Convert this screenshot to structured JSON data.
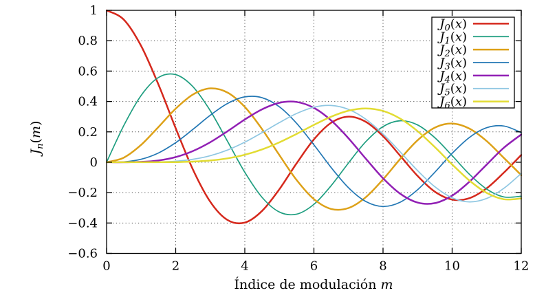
{
  "figure": {
    "background": "#ffffff",
    "title": ""
  },
  "style": {
    "axis_color": "#000000",
    "text_color": "#000000",
    "grid_color": "#4d4d4d",
    "legend_bg": "#ffffff",
    "legend_border": "#000000"
  },
  "chart_data": {
    "type": "line",
    "title": "",
    "xlabel": "Índice de modulación m",
    "ylabel": "J_n(m)",
    "xlabel_parts": {
      "text": "Índice de modulación ",
      "var": "m"
    },
    "ylabel_parts": {
      "base": "J",
      "sub": "n",
      "open": "(",
      "var": "m",
      "close": ")"
    },
    "xlim": [
      0,
      12
    ],
    "ylim": [
      -0.6,
      1
    ],
    "xticks": [
      0,
      2,
      4,
      6,
      8,
      10,
      12
    ],
    "xtick_labels": [
      "0",
      "2",
      "4",
      "6",
      "8",
      "10",
      "12"
    ],
    "yticks": [
      1,
      0.8,
      0.6,
      0.4,
      0.2,
      0,
      -0.2,
      -0.4,
      -0.6
    ],
    "ytick_labels": [
      "1",
      "0.8",
      "0.6",
      "0.4",
      "0.2",
      "0",
      "−0.2",
      "−0.4",
      "−0.6"
    ],
    "grid": true,
    "grid_style": "dotted",
    "legend_position": "top-right-inside",
    "x": [
      0,
      0.5,
      1,
      1.5,
      2,
      2.5,
      3,
      3.5,
      4,
      4.5,
      5,
      5.5,
      6,
      6.5,
      7,
      7.5,
      8,
      8.5,
      9,
      9.5,
      10,
      10.5,
      11,
      11.5,
      12
    ],
    "series": [
      {
        "name": "J_0(x)",
        "base": "J",
        "sub": "0",
        "arg_open": "(",
        "arg_var": "x",
        "arg_close": ")",
        "color": "#d5281c",
        "width": 2.5,
        "values": [
          1,
          0.9385,
          0.7652,
          0.5118,
          0.2239,
          -0.0484,
          -0.2601,
          -0.3801,
          -0.3971,
          -0.3205,
          -0.1776,
          -0.0068,
          0.1506,
          0.2601,
          0.3001,
          0.2663,
          0.1717,
          0.0419,
          -0.0903,
          -0.1939,
          -0.2459,
          -0.2366,
          -0.1712,
          -0.0677,
          0.0477
        ]
      },
      {
        "name": "J_1(x)",
        "base": "J",
        "sub": "1",
        "arg_open": "(",
        "arg_var": "x",
        "arg_close": ")",
        "color": "#1f9e80",
        "width": 1.7,
        "values": [
          0,
          0.2423,
          0.4401,
          0.5579,
          0.5767,
          0.4971,
          0.3391,
          0.1374,
          -0.066,
          -0.2311,
          -0.3276,
          -0.3414,
          -0.2767,
          -0.1538,
          -0.0047,
          0.1352,
          0.2346,
          0.2731,
          0.2453,
          0.1613,
          0.0435,
          -0.0789,
          -0.1768,
          -0.2284,
          -0.2234
        ]
      },
      {
        "name": "J_2(x)",
        "base": "J",
        "sub": "2",
        "arg_open": "(",
        "arg_var": "x",
        "arg_close": ")",
        "color": "#dda118",
        "width": 2.5,
        "values": [
          0,
          0.0306,
          0.1149,
          0.2321,
          0.3528,
          0.4461,
          0.4861,
          0.4586,
          0.3641,
          0.2178,
          0.0466,
          -0.1173,
          -0.2429,
          -0.3074,
          -0.3014,
          -0.2303,
          -0.113,
          0.0223,
          0.1448,
          0.2279,
          0.2546,
          0.2216,
          0.139,
          0.0279,
          -0.0849
        ]
      },
      {
        "name": "J_3(x)",
        "base": "J",
        "sub": "3",
        "arg_open": "(",
        "arg_var": "x",
        "arg_close": ")",
        "color": "#2277b4",
        "width": 1.7,
        "values": [
          0,
          0.0026,
          0.0196,
          0.061,
          0.1289,
          0.2166,
          0.3091,
          0.3868,
          0.4302,
          0.4247,
          0.3648,
          0.2561,
          0.1148,
          -0.0353,
          -0.1676,
          -0.2581,
          -0.2911,
          -0.2626,
          -0.1809,
          -0.0653,
          0.0584,
          0.1633,
          0.2273,
          0.2381,
          0.1951
        ]
      },
      {
        "name": "J_4(x)",
        "base": "J",
        "sub": "4",
        "arg_open": "(",
        "arg_var": "x",
        "arg_close": ")",
        "color": "#911fb4",
        "width": 2.5,
        "values": [
          0,
          0.0002,
          0.0025,
          0.0118,
          0.034,
          0.0738,
          0.132,
          0.2044,
          0.2811,
          0.3484,
          0.3912,
          0.3967,
          0.3576,
          0.2748,
          0.1578,
          0.0238,
          -0.1054,
          -0.2077,
          -0.2655,
          -0.2691,
          -0.2196,
          -0.1283,
          -0.015,
          0.0963,
          0.1825
        ]
      },
      {
        "name": "J_5(x)",
        "base": "J",
        "sub": "5",
        "arg_open": "(",
        "arg_var": "x",
        "arg_close": ")",
        "color": "#8fc7e2",
        "width": 1.7,
        "values": [
          0,
          0,
          0.0002,
          0.0018,
          0.007,
          0.0195,
          0.043,
          0.0804,
          0.1321,
          0.1947,
          0.2611,
          0.3209,
          0.3621,
          0.3736,
          0.3479,
          0.2835,
          0.1858,
          0.0671,
          -0.055,
          -0.1613,
          -0.2341,
          -0.2611,
          -0.2383,
          -0.1711,
          -0.0735
        ]
      },
      {
        "name": "J_6(x)",
        "base": "J",
        "sub": "6",
        "arg_open": "(",
        "arg_var": "x",
        "arg_close": ")",
        "color": "#e2dc33",
        "width": 2.5,
        "values": [
          0,
          0,
          0,
          0.0002,
          0.0012,
          0.0042,
          0.0114,
          0.0254,
          0.0491,
          0.0843,
          0.131,
          0.1868,
          0.2458,
          0.2999,
          0.3392,
          0.3541,
          0.3376,
          0.2867,
          0.2043,
          0.0993,
          -0.0145,
          -0.1203,
          -0.2016,
          -0.2437,
          -0.2383
        ]
      }
    ]
  }
}
